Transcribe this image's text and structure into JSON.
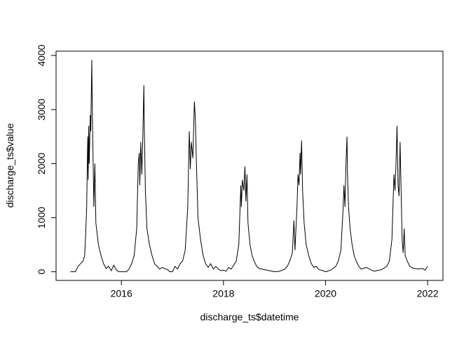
{
  "chart_data": {
    "type": "line",
    "xlabel": "discharge_ts$datetime",
    "ylabel": "discharge_ts$value",
    "color": "#000000",
    "xlim": [
      2014.72,
      2022.3
    ],
    "ylim": [
      -160,
      4080
    ],
    "xticks": [
      2016,
      2018,
      2020,
      2022
    ],
    "yticks": [
      0,
      1000,
      2000,
      3000,
      4000
    ],
    "x": [
      2015.0,
      2015.1,
      2015.15,
      2015.2,
      2015.25,
      2015.28,
      2015.3,
      2015.32,
      2015.34,
      2015.35,
      2015.36,
      2015.37,
      2015.39,
      2015.4,
      2015.42,
      2015.43,
      2015.45,
      2015.46,
      2015.48,
      2015.5,
      2015.55,
      2015.6,
      2015.65,
      2015.7,
      2015.75,
      2015.8,
      2015.85,
      2015.9,
      2015.95,
      2016.0,
      2016.1,
      2016.15,
      2016.2,
      2016.25,
      2016.3,
      2016.33,
      2016.35,
      2016.36,
      2016.38,
      2016.4,
      2016.42,
      2016.44,
      2016.45,
      2016.47,
      2016.5,
      2016.55,
      2016.6,
      2016.65,
      2016.7,
      2016.75,
      2016.8,
      2016.9,
      2016.95,
      2017.0,
      2017.05,
      2017.1,
      2017.15,
      2017.2,
      2017.25,
      2017.3,
      2017.33,
      2017.35,
      2017.37,
      2017.4,
      2017.43,
      2017.45,
      2017.47,
      2017.5,
      2017.55,
      2017.6,
      2017.65,
      2017.7,
      2017.75,
      2017.8,
      2017.85,
      2017.9,
      2017.95,
      2018.0,
      2018.05,
      2018.1,
      2018.15,
      2018.2,
      2018.25,
      2018.3,
      2018.34,
      2018.35,
      2018.37,
      2018.4,
      2018.42,
      2018.44,
      2018.46,
      2018.48,
      2018.52,
      2018.56,
      2018.6,
      2018.65,
      2018.7,
      2018.8,
      2018.9,
      2018.95,
      2019.0,
      2019.1,
      2019.2,
      2019.25,
      2019.3,
      2019.35,
      2019.38,
      2019.4,
      2019.44,
      2019.46,
      2019.48,
      2019.5,
      2019.51,
      2019.53,
      2019.55,
      2019.58,
      2019.62,
      2019.67,
      2019.72,
      2019.77,
      2019.82,
      2019.87,
      2019.95,
      2020.0,
      2020.1,
      2020.2,
      2020.25,
      2020.3,
      2020.34,
      2020.36,
      2020.38,
      2020.4,
      2020.42,
      2020.43,
      2020.45,
      2020.48,
      2020.52,
      2020.56,
      2020.6,
      2020.65,
      2020.7,
      2020.8,
      2020.9,
      2020.95,
      2021.0,
      2021.1,
      2021.2,
      2021.25,
      2021.3,
      2021.34,
      2021.36,
      2021.38,
      2021.4,
      2021.42,
      2021.44,
      2021.46,
      2021.48,
      2021.5,
      2021.52,
      2021.54,
      2021.56,
      2021.6,
      2021.65,
      2021.7,
      2021.8,
      2021.9,
      2021.95,
      2022.0
    ],
    "values": [
      0,
      0,
      100,
      150,
      200,
      300,
      700,
      1200,
      2500,
      1700,
      2700,
      2000,
      2900,
      2600,
      3920,
      3000,
      1800,
      1200,
      2000,
      900,
      500,
      300,
      150,
      60,
      100,
      20,
      120,
      30,
      0,
      0,
      0,
      50,
      150,
      300,
      800,
      2000,
      2200,
      1600,
      2400,
      1800,
      2500,
      3450,
      2600,
      1500,
      800,
      500,
      300,
      150,
      100,
      50,
      80,
      40,
      0,
      0,
      100,
      50,
      150,
      200,
      400,
      1200,
      2600,
      1900,
      2400,
      2100,
      3150,
      2800,
      2000,
      1000,
      600,
      300,
      150,
      80,
      150,
      50,
      100,
      50,
      20,
      30,
      10,
      80,
      50,
      120,
      200,
      500,
      1600,
      1200,
      1700,
      1500,
      1950,
      1300,
      1800,
      900,
      500,
      300,
      200,
      100,
      60,
      40,
      20,
      10,
      0,
      10,
      50,
      100,
      200,
      350,
      950,
      400,
      1200,
      1800,
      1600,
      2200,
      1800,
      2430,
      1500,
      900,
      500,
      300,
      150,
      80,
      100,
      40,
      20,
      0,
      30,
      100,
      200,
      400,
      1100,
      1600,
      1200,
      2000,
      2500,
      1800,
      1200,
      800,
      500,
      300,
      200,
      100,
      50,
      80,
      30,
      10,
      20,
      40,
      100,
      200,
      600,
      1800,
      1500,
      2000,
      2700,
      1600,
      1400,
      2400,
      1500,
      600,
      350,
      800,
      300,
      200,
      100,
      70,
      50,
      60,
      30,
      100
    ]
  }
}
